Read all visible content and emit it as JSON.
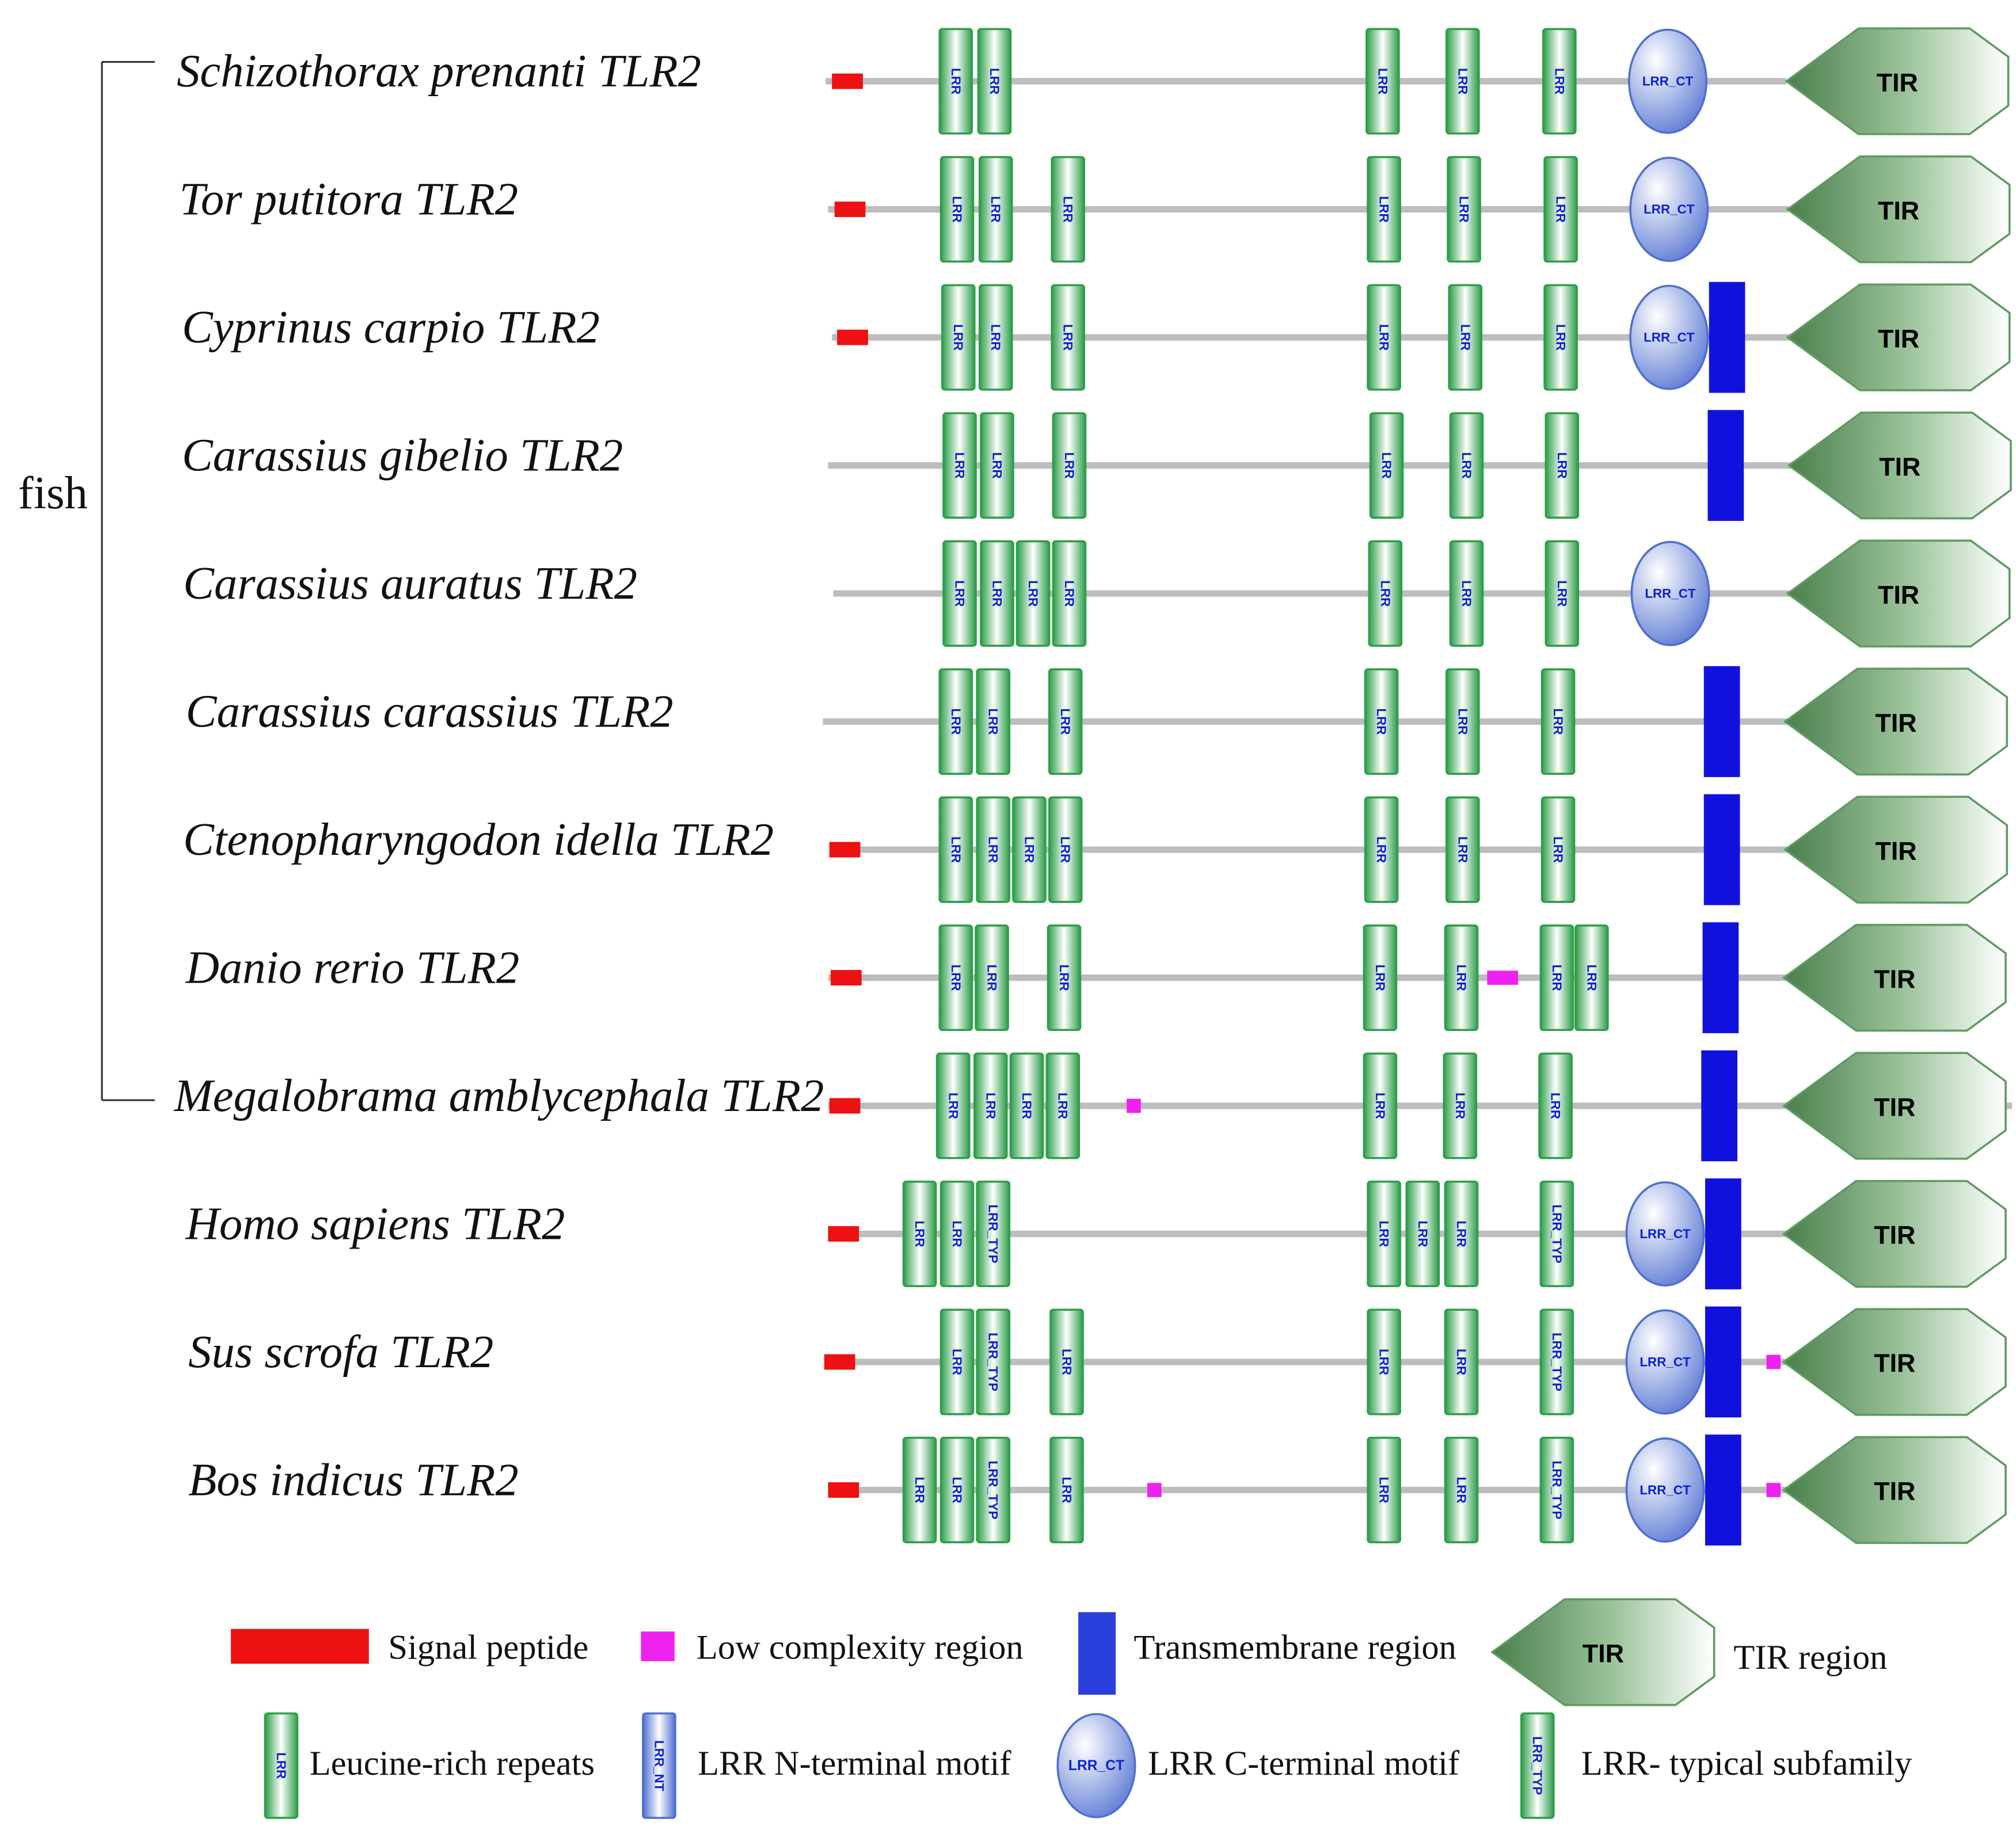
{
  "clade": {
    "label": "fish",
    "count": 9
  },
  "colors": {
    "backbone": "#bdbdbd",
    "signal": "#ee1111",
    "low_complexity": "#ee22ee",
    "transmembrane": "#1111dd",
    "lrr_green": "#2e9e4a",
    "tir_dark": "#4a7f4d",
    "ct_blue": "#4f6fd0",
    "label_blue": "#0a1fd6"
  },
  "domain_text": {
    "lrr": "LRR",
    "lrr_typ": "LRR_TYP",
    "lrr_ct": "LRR_CT",
    "lrr_nt": "LRR_NT",
    "tir": "TIR"
  },
  "proteins": [
    {
      "name": "Schizothorax prenanti TLR2",
      "line": [
        640,
        1385
      ],
      "domains": [
        {
          "type": "signal",
          "pos": 657
        },
        {
          "type": "lrr",
          "pos": 741
        },
        {
          "type": "lrr",
          "pos": 771
        },
        {
          "type": "lrr",
          "pos": 1072
        },
        {
          "type": "lrr",
          "pos": 1134
        },
        {
          "type": "lrr",
          "pos": 1209
        },
        {
          "type": "lrr_ct",
          "pos": 1293
        },
        {
          "type": "tir",
          "pos": 1471
        }
      ]
    },
    {
      "name": "Tor putitora TLR2",
      "line": [
        642,
        1387
      ],
      "domains": [
        {
          "type": "signal",
          "pos": 659
        },
        {
          "type": "lrr",
          "pos": 742
        },
        {
          "type": "lrr",
          "pos": 772
        },
        {
          "type": "lrr",
          "pos": 828
        },
        {
          "type": "lrr",
          "pos": 1073
        },
        {
          "type": "lrr",
          "pos": 1135
        },
        {
          "type": "lrr",
          "pos": 1210
        },
        {
          "type": "lrr_ct",
          "pos": 1294
        },
        {
          "type": "tir",
          "pos": 1472
        }
      ]
    },
    {
      "name": "Cyprinus carpio TLR2",
      "line": [
        645,
        1388
      ],
      "domains": [
        {
          "type": "signal",
          "pos": 661
        },
        {
          "type": "lrr",
          "pos": 743
        },
        {
          "type": "lrr",
          "pos": 772
        },
        {
          "type": "lrr",
          "pos": 828
        },
        {
          "type": "lrr",
          "pos": 1073
        },
        {
          "type": "lrr",
          "pos": 1136
        },
        {
          "type": "lrr",
          "pos": 1210
        },
        {
          "type": "lrr_ct",
          "pos": 1294
        },
        {
          "type": "tm",
          "pos": 1339
        },
        {
          "type": "tir",
          "pos": 1472
        }
      ]
    },
    {
      "name": "Carassius gibelio TLR2",
      "line": [
        642,
        1390
      ],
      "domains": [
        {
          "type": "lrr",
          "pos": 744
        },
        {
          "type": "lrr",
          "pos": 773
        },
        {
          "type": "lrr",
          "pos": 829
        },
        {
          "type": "lrr",
          "pos": 1075
        },
        {
          "type": "lrr",
          "pos": 1137
        },
        {
          "type": "lrr",
          "pos": 1211
        },
        {
          "type": "tm",
          "pos": 1338
        },
        {
          "type": "tir",
          "pos": 1473
        }
      ]
    },
    {
      "name": "Carassius auratus TLR2",
      "line": [
        646,
        1390
      ],
      "domains": [
        {
          "type": "lrr",
          "pos": 744
        },
        {
          "type": "lrr",
          "pos": 773
        },
        {
          "type": "lrr",
          "pos": 801
        },
        {
          "type": "lrr",
          "pos": 829
        },
        {
          "type": "lrr",
          "pos": 1074
        },
        {
          "type": "lrr",
          "pos": 1137
        },
        {
          "type": "lrr",
          "pos": 1211
        },
        {
          "type": "lrr_ct",
          "pos": 1295
        },
        {
          "type": "tir",
          "pos": 1472
        }
      ]
    },
    {
      "name": "Carassius carassius TLR2",
      "line": [
        638,
        1386
      ],
      "domains": [
        {
          "type": "lrr",
          "pos": 741
        },
        {
          "type": "lrr",
          "pos": 770
        },
        {
          "type": "lrr",
          "pos": 826
        },
        {
          "type": "lrr",
          "pos": 1071
        },
        {
          "type": "lrr",
          "pos": 1134
        },
        {
          "type": "lrr",
          "pos": 1208
        },
        {
          "type": "tm",
          "pos": 1335
        },
        {
          "type": "tir",
          "pos": 1470
        }
      ]
    },
    {
      "name": "Ctenopharyngodon idella TLR2",
      "line": [
        643,
        1386
      ],
      "domains": [
        {
          "type": "signal",
          "pos": 655
        },
        {
          "type": "lrr",
          "pos": 741
        },
        {
          "type": "lrr",
          "pos": 770
        },
        {
          "type": "lrr",
          "pos": 798
        },
        {
          "type": "lrr",
          "pos": 826
        },
        {
          "type": "lrr",
          "pos": 1071
        },
        {
          "type": "lrr",
          "pos": 1134
        },
        {
          "type": "lrr",
          "pos": 1208
        },
        {
          "type": "tm",
          "pos": 1335
        },
        {
          "type": "tir",
          "pos": 1470
        }
      ]
    },
    {
      "name": "Danio rerio TLR2",
      "line": [
        642,
        1385
      ],
      "domains": [
        {
          "type": "signal",
          "pos": 656
        },
        {
          "type": "lrr",
          "pos": 741
        },
        {
          "type": "lrr",
          "pos": 769
        },
        {
          "type": "lrr",
          "pos": 825
        },
        {
          "type": "lrr",
          "pos": 1070
        },
        {
          "type": "lrr",
          "pos": 1133
        },
        {
          "type": "low",
          "pos": 1165,
          "wide": true
        },
        {
          "type": "lrr",
          "pos": 1207
        },
        {
          "type": "lrr",
          "pos": 1234
        },
        {
          "type": "tm",
          "pos": 1334
        },
        {
          "type": "tir",
          "pos": 1469
        }
      ]
    },
    {
      "name": "Megalobrama amblycephala TLR2",
      "line": [
        642,
        1560
      ],
      "domains": [
        {
          "type": "signal",
          "pos": 655
        },
        {
          "type": "lrr",
          "pos": 739
        },
        {
          "type": "lrr",
          "pos": 768
        },
        {
          "type": "lrr",
          "pos": 796
        },
        {
          "type": "lrr",
          "pos": 824
        },
        {
          "type": "low",
          "pos": 879
        },
        {
          "type": "lrr",
          "pos": 1070
        },
        {
          "type": "lrr",
          "pos": 1132
        },
        {
          "type": "lrr",
          "pos": 1206
        },
        {
          "type": "tm",
          "pos": 1333
        },
        {
          "type": "tir",
          "pos": 1469
        }
      ]
    },
    {
      "name": "Homo sapiens TLR2",
      "line": [
        642,
        1385
      ],
      "domains": [
        {
          "type": "signal",
          "pos": 654
        },
        {
          "type": "lrr",
          "pos": 713
        },
        {
          "type": "lrr",
          "pos": 742
        },
        {
          "type": "lrr_typ",
          "pos": 770
        },
        {
          "type": "lrr",
          "pos": 1073
        },
        {
          "type": "lrr",
          "pos": 1103
        },
        {
          "type": "lrr",
          "pos": 1133
        },
        {
          "type": "lrr_typ",
          "pos": 1207
        },
        {
          "type": "lrr_ct",
          "pos": 1291
        },
        {
          "type": "tm",
          "pos": 1336
        },
        {
          "type": "tir",
          "pos": 1469
        }
      ]
    },
    {
      "name": "Sus scrofa TLR2",
      "line": [
        641,
        1385
      ],
      "domains": [
        {
          "type": "signal",
          "pos": 651
        },
        {
          "type": "lrr",
          "pos": 742
        },
        {
          "type": "lrr_typ",
          "pos": 770
        },
        {
          "type": "lrr",
          "pos": 827
        },
        {
          "type": "lrr",
          "pos": 1073
        },
        {
          "type": "lrr",
          "pos": 1133
        },
        {
          "type": "lrr_typ",
          "pos": 1207
        },
        {
          "type": "lrr_ct",
          "pos": 1291
        },
        {
          "type": "tm",
          "pos": 1336
        },
        {
          "type": "low",
          "pos": 1375
        },
        {
          "type": "tir",
          "pos": 1469
        }
      ]
    },
    {
      "name": "Bos indicus TLR2",
      "line": [
        643,
        1385
      ],
      "domains": [
        {
          "type": "signal",
          "pos": 654
        },
        {
          "type": "lrr",
          "pos": 713
        },
        {
          "type": "lrr",
          "pos": 742
        },
        {
          "type": "lrr_typ",
          "pos": 770
        },
        {
          "type": "lrr",
          "pos": 827
        },
        {
          "type": "low",
          "pos": 895
        },
        {
          "type": "lrr",
          "pos": 1073
        },
        {
          "type": "lrr",
          "pos": 1133
        },
        {
          "type": "lrr_typ",
          "pos": 1207
        },
        {
          "type": "lrr_ct",
          "pos": 1291
        },
        {
          "type": "tm",
          "pos": 1336
        },
        {
          "type": "low",
          "pos": 1375
        },
        {
          "type": "tir",
          "pos": 1469
        }
      ]
    }
  ],
  "legend": [
    {
      "key": "signal",
      "label": "Signal peptide"
    },
    {
      "key": "low",
      "label": "Low complexity region"
    },
    {
      "key": "tm",
      "label": "Transmembrane region"
    },
    {
      "key": "tir",
      "label": "TIR region"
    },
    {
      "key": "lrr",
      "label": "Leucine-rich repeats"
    },
    {
      "key": "lrr_nt",
      "label": "LRR N-terminal motif"
    },
    {
      "key": "lrr_ct",
      "label": "LRR C-terminal motif"
    },
    {
      "key": "lrr_typ",
      "label": "LRR- typical subfamily"
    }
  ]
}
